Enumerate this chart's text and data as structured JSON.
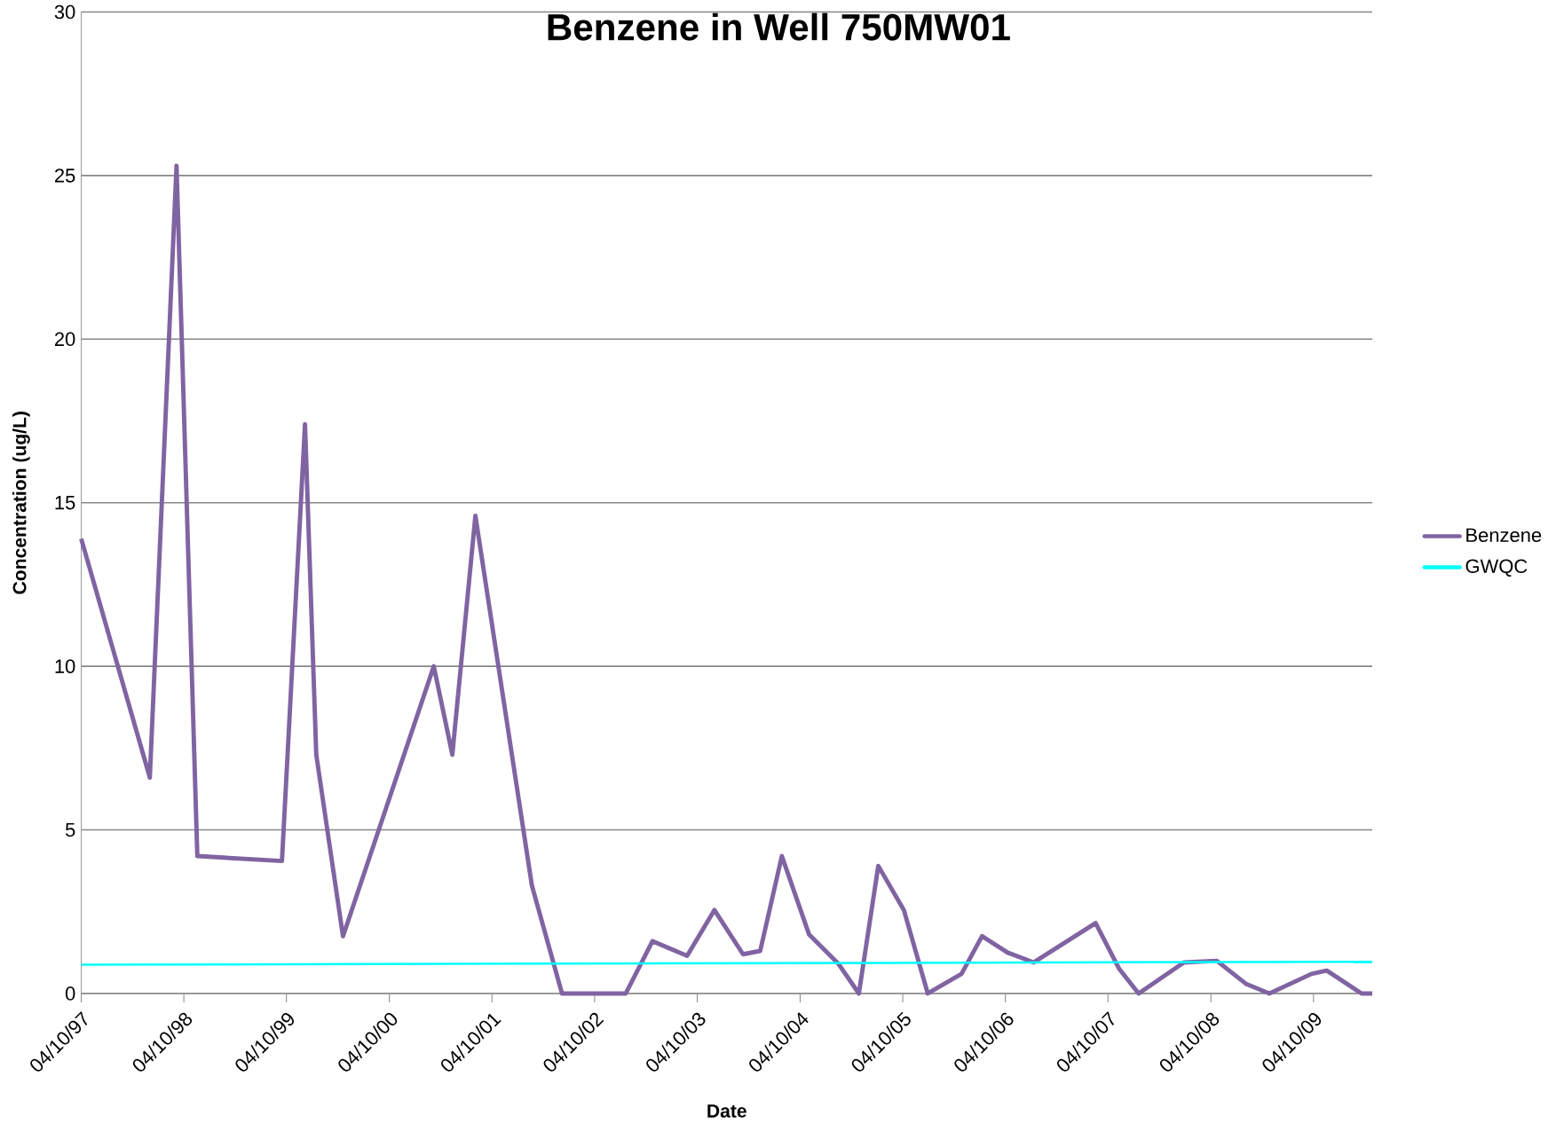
{
  "chart_data": {
    "type": "line",
    "title": "Benzene in Well 750MW01",
    "xlabel": "Date",
    "ylabel": "Concentration (ug/L)",
    "xlim": [
      "1997-04-10",
      "2009-11-05"
    ],
    "xticks": [
      {
        "value": "1997-04-10",
        "label": "04/10/97"
      },
      {
        "value": "1998-04-10",
        "label": "04/10/98"
      },
      {
        "value": "1999-04-10",
        "label": "04/10/99"
      },
      {
        "value": "2000-04-10",
        "label": "04/10/00"
      },
      {
        "value": "2001-04-10",
        "label": "04/10/01"
      },
      {
        "value": "2002-04-10",
        "label": "04/10/02"
      },
      {
        "value": "2003-04-10",
        "label": "04/10/03"
      },
      {
        "value": "2004-04-10",
        "label": "04/10/04"
      },
      {
        "value": "2005-04-10",
        "label": "04/10/05"
      },
      {
        "value": "2006-04-10",
        "label": "04/10/06"
      },
      {
        "value": "2007-04-10",
        "label": "04/10/07"
      },
      {
        "value": "2008-04-10",
        "label": "04/10/08"
      },
      {
        "value": "2009-04-10",
        "label": "04/10/09"
      }
    ],
    "ylim": [
      0,
      30
    ],
    "yticks": [
      0,
      5,
      10,
      15,
      20,
      25,
      30
    ],
    "grid": "y",
    "legend": "right",
    "marker": "none",
    "line_style": "solid",
    "series": [
      {
        "name": "Benzene",
        "color": "#8064a2",
        "x": [
          "1997-04-10",
          "1997-12-10",
          "1998-03-15",
          "1998-05-28",
          "1999-03-25",
          "1999-06-15",
          "1999-07-25",
          "1999-10-28",
          "2000-09-15",
          "2000-11-20",
          "2001-02-10",
          "2001-08-30",
          "2001-12-15",
          "2002-07-30",
          "2002-11-02",
          "2003-03-05",
          "2003-06-10",
          "2003-09-20",
          "2003-11-20",
          "2004-02-05",
          "2004-05-12",
          "2004-08-25",
          "2004-11-05",
          "2005-01-13",
          "2005-04-14",
          "2005-07-08",
          "2005-11-05",
          "2006-01-17",
          "2006-04-18",
          "2006-07-20",
          "2007-02-25",
          "2007-05-20",
          "2007-07-28",
          "2008-01-05",
          "2008-05-01",
          "2008-08-12",
          "2008-11-04",
          "2009-04-03",
          "2009-05-27",
          "2009-09-28",
          "2009-11-05"
        ],
        "values": [
          13.9,
          6.6,
          25.3,
          4.2,
          4.05,
          17.4,
          7.3,
          1.75,
          10.0,
          7.3,
          14.6,
          3.3,
          0,
          0,
          1.6,
          1.15,
          2.55,
          1.2,
          1.3,
          4.2,
          1.8,
          0.9,
          0,
          3.9,
          2.55,
          0,
          0.6,
          1.75,
          1.25,
          0.95,
          2.15,
          0.75,
          0,
          0.95,
          1.0,
          0.3,
          0,
          0.6,
          0.7,
          0,
          0
        ]
      },
      {
        "name": "GWQC",
        "color": "#00ffff",
        "x": [
          "1997-04-10",
          "2009-11-05"
        ],
        "values": [
          0.88,
          0.97
        ]
      }
    ]
  }
}
